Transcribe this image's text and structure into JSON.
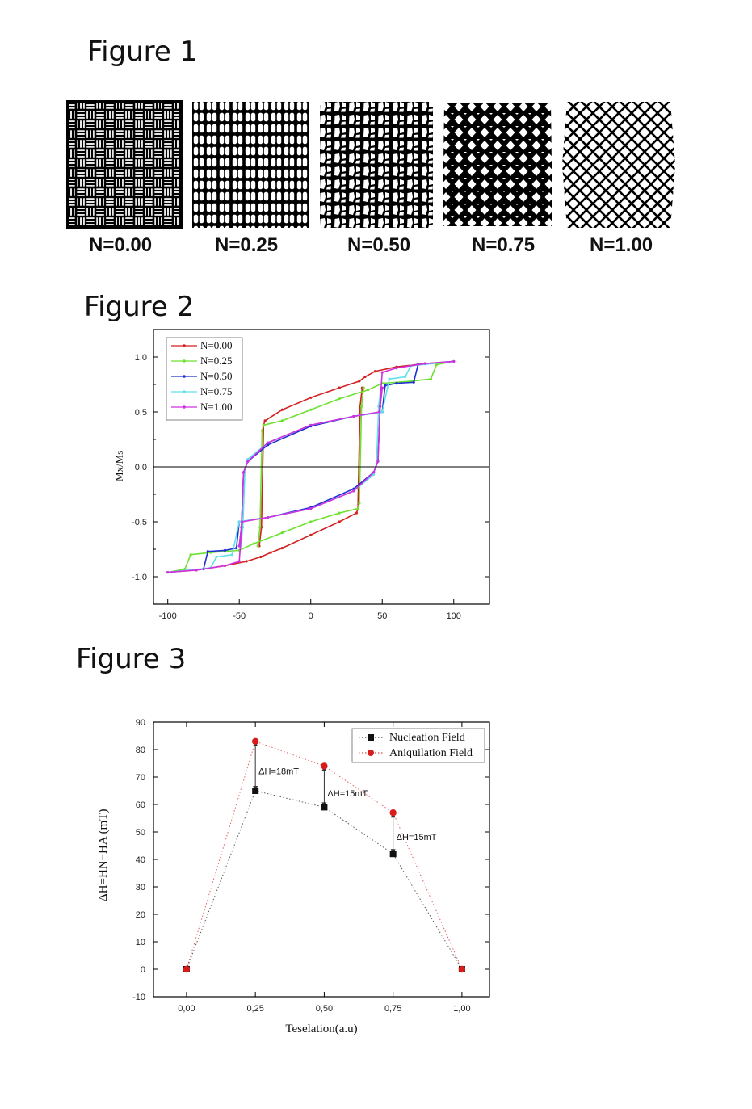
{
  "figure1": {
    "title": "Figure 1",
    "labels": [
      "N=0.00",
      "N=0.25",
      "N=0.50",
      "N=0.75",
      "N=1.00"
    ]
  },
  "figure2": {
    "title": "Figure 2",
    "chart_data": {
      "type": "line",
      "ylabel": "Mx/Ms",
      "xlim": [
        -110,
        125
      ],
      "ylim": [
        -1.25,
        1.25
      ],
      "xticks": [
        "-100",
        "-50",
        "0",
        "50",
        "100"
      ],
      "yticks": [
        "1,0",
        "0,5",
        "0,0",
        "-0,5",
        "-1,0"
      ],
      "legend_position": "top-left",
      "series": [
        {
          "name": "N=0.00",
          "color": "#d42020",
          "jump_field": 34,
          "step_field": 38,
          "step_level": 0.72,
          "upper": [
            [
              -100,
              -0.96
            ],
            [
              -80,
              -0.94
            ],
            [
              -60,
              -0.9
            ],
            [
              -45,
              -0.86
            ],
            [
              -35,
              -0.82
            ],
            [
              -28,
              -0.78
            ],
            [
              -20,
              -0.74
            ],
            [
              0,
              -0.62
            ],
            [
              20,
              -0.5
            ],
            [
              32,
              -0.42
            ],
            [
              33,
              -0.38
            ]
          ],
          "lower": [
            [
              100,
              0.96
            ],
            [
              80,
              0.94
            ],
            [
              60,
              0.91
            ],
            [
              45,
              0.87
            ],
            [
              38,
              0.82
            ],
            [
              34,
              0.78
            ],
            [
              20,
              0.72
            ],
            [
              0,
              0.63
            ],
            [
              -20,
              0.52
            ],
            [
              -32,
              0.42
            ],
            [
              -33,
              0.38
            ]
          ]
        },
        {
          "name": "N=0.25",
          "color": "#6ee030",
          "jump_field": 32,
          "step_field": 83,
          "step_level": 0.8,
          "upper": [
            [
              -100,
              -0.96
            ],
            [
              -88,
              -0.93
            ],
            [
              -84,
              -0.8
            ],
            [
              -70,
              -0.78
            ],
            [
              -50,
              -0.76
            ],
            [
              -40,
              -0.7
            ],
            [
              -20,
              -0.6
            ],
            [
              0,
              -0.5
            ],
            [
              20,
              -0.42
            ],
            [
              33,
              -0.38
            ],
            [
              34,
              -0.33
            ]
          ],
          "lower": [
            [
              100,
              0.96
            ],
            [
              88,
              0.93
            ],
            [
              84,
              0.8
            ],
            [
              70,
              0.78
            ],
            [
              50,
              0.76
            ],
            [
              40,
              0.7
            ],
            [
              20,
              0.62
            ],
            [
              0,
              0.52
            ],
            [
              -20,
              0.42
            ],
            [
              -33,
              0.38
            ],
            [
              -34,
              0.33
            ]
          ]
        },
        {
          "name": "N=0.50",
          "color": "#2030d0",
          "jump_field": 48,
          "step_field": 72,
          "step_level": 0.75,
          "upper": [
            [
              -100,
              -0.96
            ],
            [
              -75,
              -0.93
            ],
            [
              -72,
              -0.77
            ],
            [
              -60,
              -0.76
            ],
            [
              -52,
              -0.74
            ],
            [
              -50,
              -0.5
            ],
            [
              -30,
              -0.46
            ],
            [
              0,
              -0.37
            ],
            [
              30,
              -0.2
            ],
            [
              44,
              -0.05
            ],
            [
              47,
              0.05
            ]
          ],
          "lower": [
            [
              100,
              0.96
            ],
            [
              75,
              0.93
            ],
            [
              72,
              0.77
            ],
            [
              60,
              0.76
            ],
            [
              52,
              0.74
            ],
            [
              50,
              0.5
            ],
            [
              30,
              0.46
            ],
            [
              0,
              0.37
            ],
            [
              -30,
              0.2
            ],
            [
              -44,
              0.05
            ],
            [
              -47,
              -0.05
            ]
          ]
        },
        {
          "name": "N=0.75",
          "color": "#60e0e8",
          "jump_field": 47,
          "step_field": 66,
          "step_level": 0.82,
          "upper": [
            [
              -100,
              -0.96
            ],
            [
              -70,
              -0.92
            ],
            [
              -66,
              -0.82
            ],
            [
              -55,
              -0.8
            ],
            [
              -50,
              -0.5
            ],
            [
              -30,
              -0.46
            ],
            [
              0,
              -0.38
            ],
            [
              30,
              -0.22
            ],
            [
              44,
              -0.07
            ],
            [
              46,
              0.03
            ]
          ],
          "lower": [
            [
              100,
              0.96
            ],
            [
              70,
              0.92
            ],
            [
              66,
              0.82
            ],
            [
              55,
              0.8
            ],
            [
              50,
              0.5
            ],
            [
              30,
              0.46
            ],
            [
              0,
              0.38
            ],
            [
              -30,
              0.22
            ],
            [
              -44,
              0.07
            ],
            [
              -46,
              -0.03
            ]
          ]
        },
        {
          "name": "N=1.00",
          "color": "#d030e0",
          "jump_field": 48,
          "step_field": 0,
          "step_level": 0,
          "upper": [
            [
              -100,
              -0.96
            ],
            [
              -80,
              -0.94
            ],
            [
              -60,
              -0.9
            ],
            [
              -50,
              -0.86
            ],
            [
              -48,
              -0.5
            ],
            [
              -30,
              -0.46
            ],
            [
              0,
              -0.38
            ],
            [
              30,
              -0.22
            ],
            [
              44,
              -0.05
            ],
            [
              47,
              0.05
            ]
          ],
          "lower": [
            [
              100,
              0.96
            ],
            [
              80,
              0.94
            ],
            [
              60,
              0.9
            ],
            [
              50,
              0.86
            ],
            [
              48,
              0.5
            ],
            [
              30,
              0.46
            ],
            [
              0,
              0.38
            ],
            [
              -30,
              0.22
            ],
            [
              -44,
              0.05
            ],
            [
              -47,
              -0.05
            ]
          ]
        }
      ]
    }
  },
  "figure3": {
    "title": "Figure 3",
    "chart_data": {
      "type": "scatter",
      "xlabel": "Teselation(a.u)",
      "ylabel": "ΔH=HN−HA (mT)",
      "xlim": [
        -0.12,
        1.1
      ],
      "ylim": [
        -10,
        90
      ],
      "xticks": [
        0,
        0.25,
        0.5,
        0.75,
        1.0
      ],
      "xtick_labels": [
        "0,00",
        "0,25",
        "0,50",
        "0,75",
        "1,00"
      ],
      "yticks": [
        -10,
        0,
        10,
        20,
        30,
        40,
        50,
        60,
        70,
        80,
        90
      ],
      "legend_position": "top-right",
      "series": [
        {
          "name": "Nucleation Field",
          "color": "#111111",
          "marker": "square",
          "x": [
            0,
            0.25,
            0.5,
            0.75,
            1.0
          ],
          "y": [
            0,
            65,
            59,
            42,
            0
          ]
        },
        {
          "name": "Aniquilation Field",
          "color": "#d81c1c",
          "marker": "circle",
          "x": [
            0,
            0.25,
            0.5,
            0.75,
            1.0
          ],
          "y": [
            0,
            83,
            74,
            57,
            0
          ]
        }
      ],
      "annotations": [
        {
          "text": "ΔH=18mT",
          "x": 0.25,
          "y": 71,
          "from": 65,
          "to": 83
        },
        {
          "text": "ΔH=15mT",
          "x": 0.5,
          "y": 63,
          "from": 59,
          "to": 74
        },
        {
          "text": "ΔH=15mT",
          "x": 0.75,
          "y": 47,
          "from": 42,
          "to": 57
        }
      ]
    }
  }
}
